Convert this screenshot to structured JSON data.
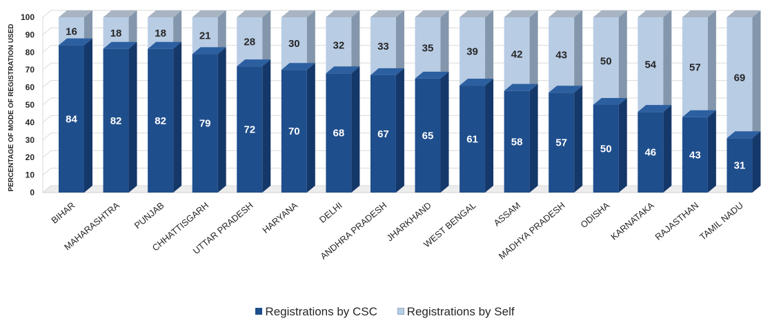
{
  "chart_data": {
    "type": "bar",
    "stacked": true,
    "three_d": true,
    "categories": [
      "BIHAR",
      "MAHARASHTRA",
      "PUNJAB",
      "CHHATTISGARH",
      "UTTAR PRADESH",
      "HARYANA",
      "DELHI",
      "ANDHRA PRADESH",
      "JHARKHAND",
      "WEST BENGAL",
      "ASSAM",
      "MADHYA PRADESH",
      "ODISHA",
      "KARNATAKA",
      "RAJASTHAN",
      "TAMIL NADU"
    ],
    "series": [
      {
        "name": "Registrations by CSC",
        "color": "#1f4e8c",
        "values": [
          84,
          82,
          82,
          79,
          72,
          70,
          68,
          67,
          65,
          61,
          58,
          57,
          50,
          46,
          43,
          31
        ]
      },
      {
        "name": "Registrations by Self",
        "color": "#b8cce4",
        "values": [
          16,
          18,
          18,
          21,
          28,
          30,
          32,
          33,
          35,
          39,
          42,
          43,
          50,
          54,
          57,
          69
        ]
      }
    ],
    "title": "",
    "xlabel": "",
    "ylabel": "PERCENTAGE OF MODE OF REGISTRATION USED",
    "ylim": [
      0,
      100
    ],
    "yticks": [
      0,
      10,
      20,
      30,
      40,
      50,
      60,
      70,
      80,
      90,
      100
    ],
    "grid": true,
    "legend": "bottom"
  }
}
